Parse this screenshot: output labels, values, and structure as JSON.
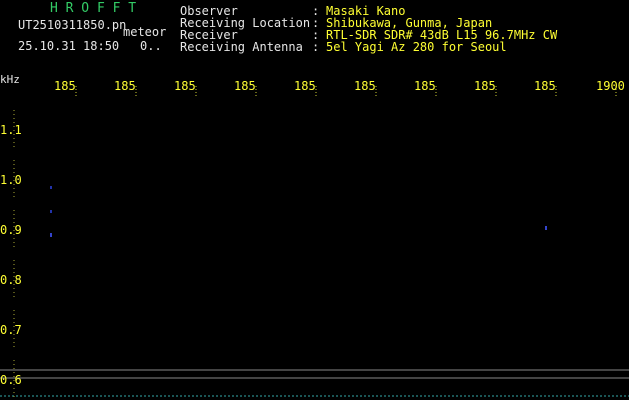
{
  "app": {
    "title": "H R O F F T",
    "file_name": "UT2510311850.pn",
    "mode": "meteor",
    "timestamp": "25.10.31 18:50",
    "count": "0.."
  },
  "info": [
    {
      "label": "Observer",
      "value": "Masaki Kano"
    },
    {
      "label": "Receiving Location",
      "value": "Shibukawa, Gunma, Japan"
    },
    {
      "label": "Receiver",
      "value": "RTL-SDR SDR# 43dB L15 96.7MHz CW"
    },
    {
      "label": "Receiving Antenna",
      "value": "5el Yagi Az 280 for Seoul"
    }
  ],
  "separator": ":",
  "spectrogram": {
    "y_unit": "kHz",
    "x_labels": [
      "185",
      "185",
      "185",
      "185",
      "185",
      "185",
      "185",
      "185",
      "185",
      "1900"
    ],
    "y_labels": [
      "1.1",
      "1.0",
      "0.9",
      "0.8",
      "0.7",
      "0.6"
    ]
  }
}
